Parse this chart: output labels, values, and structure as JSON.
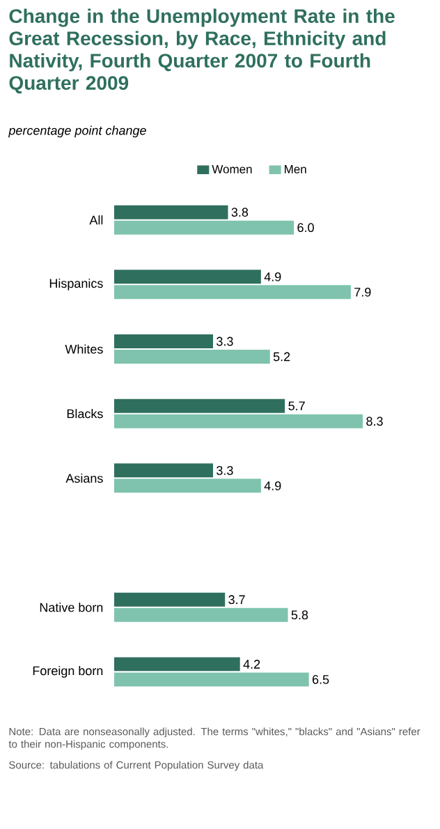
{
  "chart_data": {
    "type": "bar",
    "orientation": "horizontal",
    "title": "Change in the Unemployment Rate in the Great Recession, by Race, Ethnicity and Nativity, Fourth Quarter 2007 to Fourth Quarter 2009",
    "subtitle": "percentage point change",
    "categories": [
      "All",
      "Hispanics",
      "Whites",
      "Blacks",
      "Asians",
      null,
      "Native born",
      "Foreign born"
    ],
    "series": [
      {
        "name": "Women",
        "color": "#2f6f5e",
        "values": [
          3.8,
          4.9,
          3.3,
          5.7,
          3.3,
          null,
          3.7,
          4.2
        ],
        "value_labels": [
          "3.8",
          "4.9",
          "3.3",
          "5.7",
          "3.3",
          null,
          "3.7",
          "4.2"
        ]
      },
      {
        "name": "Men",
        "color": "#7fc3ae",
        "values": [
          6.0,
          7.9,
          5.2,
          8.3,
          4.9,
          null,
          5.8,
          6.5
        ],
        "value_labels": [
          "6.0",
          "7.9",
          "5.2",
          "8.3",
          "4.9",
          null,
          "5.8",
          "6.5"
        ]
      }
    ],
    "legend": "top",
    "annotations": [
      "Note: Data are nonseasonally adjusted. The terms \"whites,\" \"blacks\" and \"Asians\" refer to their non-Hispanic components.",
      "Source: tabulations of Current Population Survey data"
    ]
  }
}
